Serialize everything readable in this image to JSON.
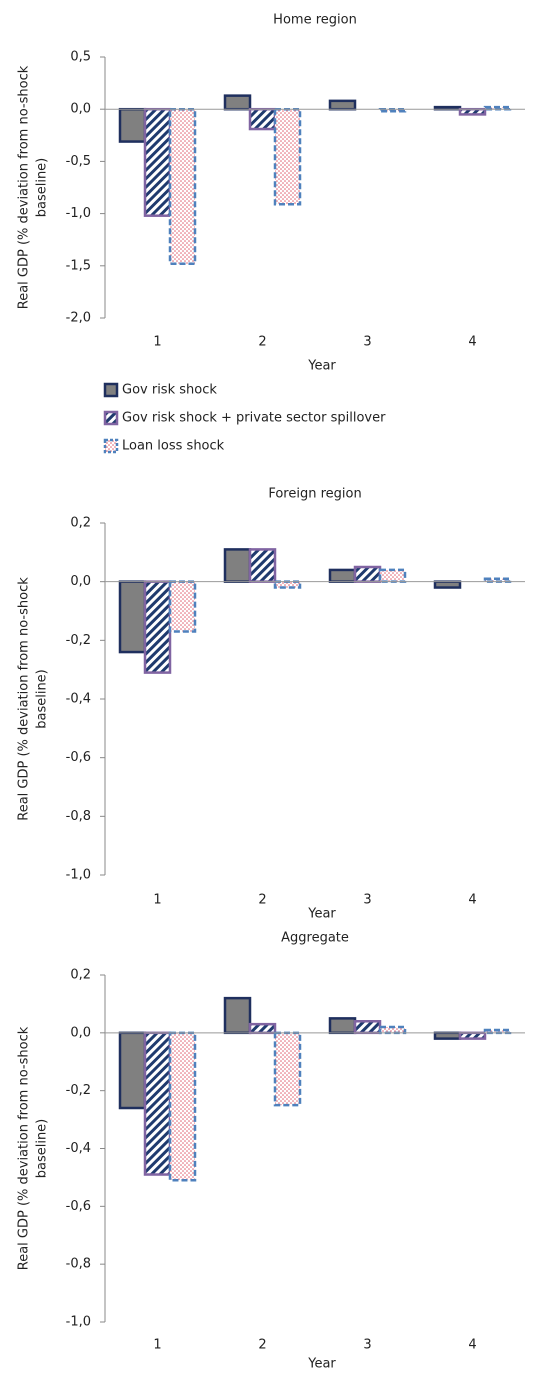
{
  "chart_data": [
    {
      "type": "bar",
      "title": "Home region",
      "xlabel": "Year",
      "ylabel": [
        "Real GDP (% deviation from no-shock",
        "baseline)"
      ],
      "categories": [
        "1",
        "2",
        "3",
        "4"
      ],
      "series": [
        {
          "name": "Gov risk shock",
          "color": "#1f2f5e",
          "values": [
            -0.31,
            0.13,
            0.08,
            0.02
          ]
        },
        {
          "name": "Gov risk shock + private sector spillover",
          "color": "#8064a2",
          "values": [
            -1.02,
            -0.19,
            0.0,
            -0.05
          ]
        },
        {
          "name": "Loan loss shock",
          "color": "#4f81bd",
          "values": [
            -1.48,
            -0.91,
            -0.02,
            0.02
          ]
        }
      ],
      "ylim": [
        -2.0,
        0.5
      ],
      "yticks": [
        {
          "value": 0.5,
          "label": "0,5"
        },
        {
          "value": 0.0,
          "label": "0,0"
        },
        {
          "value": -0.5,
          "label": "-0,5"
        },
        {
          "value": -1.0,
          "label": "-1,0"
        },
        {
          "value": -1.5,
          "label": "-1,5"
        },
        {
          "value": -2.0,
          "label": "-2,0"
        }
      ],
      "legend": "bottom"
    },
    {
      "type": "bar",
      "title": "Foreign region",
      "xlabel": "Year",
      "ylabel": [
        "Real GDP (% deviation from no-shock",
        "baseline)"
      ],
      "categories": [
        "1",
        "2",
        "3",
        "4"
      ],
      "series": [
        {
          "color": "#1f2f5e",
          "values": [
            -0.24,
            0.11,
            0.04,
            -0.02
          ]
        },
        {
          "color": "#8064a2",
          "values": [
            -0.31,
            0.11,
            0.05,
            0.0
          ]
        },
        {
          "color": "#4f81bd",
          "values": [
            -0.17,
            -0.02,
            0.04,
            0.01
          ]
        }
      ],
      "ylim": [
        -1.0,
        0.2
      ],
      "yticks": [
        {
          "value": 0.2,
          "label": "0,2"
        },
        {
          "value": 0.0,
          "label": "0,0"
        },
        {
          "value": -0.2,
          "label": "-0,2"
        },
        {
          "value": -0.4,
          "label": "-0,4"
        },
        {
          "value": -0.6,
          "label": "-0,6"
        },
        {
          "value": -0.8,
          "label": "-0,8"
        },
        {
          "value": -1.0,
          "label": "-1,0"
        }
      ]
    },
    {
      "type": "bar",
      "title": "Aggregate",
      "xlabel": "Year",
      "ylabel": [
        "Real GDP (% deviation from no-shock",
        "baseline)"
      ],
      "categories": [
        "1",
        "2",
        "3",
        "4"
      ],
      "series": [
        {
          "color": "#1f2f5e",
          "values": [
            -0.26,
            0.12,
            0.05,
            -0.02
          ]
        },
        {
          "color": "#8064a2",
          "values": [
            -0.49,
            0.03,
            0.04,
            -0.02
          ]
        },
        {
          "color": "#4f81bd",
          "values": [
            -0.51,
            -0.25,
            0.02,
            0.01
          ]
        }
      ],
      "ylim": [
        -1.0,
        0.2
      ],
      "yticks": [
        {
          "value": 0.2,
          "label": "0,2"
        },
        {
          "value": 0.0,
          "label": "0,0"
        },
        {
          "value": -0.2,
          "label": "-0,2"
        },
        {
          "value": -0.4,
          "label": "-0,4"
        },
        {
          "value": -0.6,
          "label": "-0,6"
        },
        {
          "value": -0.8,
          "label": "-0,8"
        },
        {
          "value": -1.0,
          "label": "-1,0"
        }
      ]
    }
  ]
}
